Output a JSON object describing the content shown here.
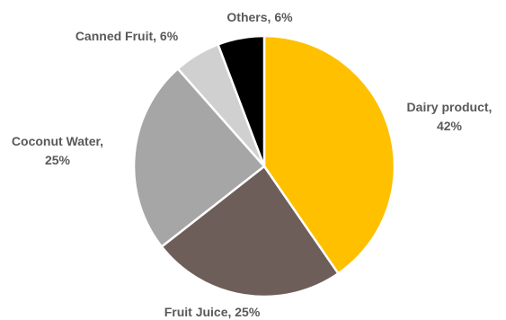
{
  "chart_data": {
    "type": "pie",
    "title": "",
    "slices": [
      {
        "name": "Dairy product",
        "value": 42,
        "color": "#FFC000",
        "label_lines": [
          "Dairy product,",
          "42%"
        ]
      },
      {
        "name": "Fruit Juice",
        "value": 25,
        "color": "#6E5E5A",
        "label_lines": [
          "Fruit Juice, 25%"
        ]
      },
      {
        "name": "Coconut Water",
        "value": 25,
        "color": "#A6A6A6",
        "label_lines": [
          "Coconut Water,",
          "25%"
        ]
      },
      {
        "name": "Canned Fruit",
        "value": 6,
        "color": "#D0D0D0",
        "label_lines": [
          "Canned Fruit, 6%"
        ]
      },
      {
        "name": "Others",
        "value": 6,
        "color": "#000000",
        "label_lines": [
          "Others, 6%"
        ]
      }
    ]
  }
}
